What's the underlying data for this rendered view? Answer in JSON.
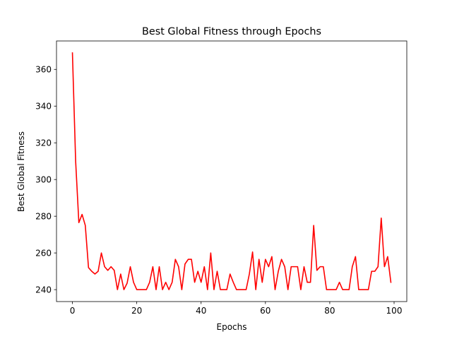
{
  "chart_data": {
    "type": "line",
    "title": "Best Global Fitness through Epochs",
    "xlabel": "Epochs",
    "ylabel": "Best Global Fitness",
    "xlim": [
      -4.95,
      103.95
    ],
    "ylim": [
      233.5,
      375.5
    ],
    "xticks": [
      0,
      20,
      40,
      60,
      80,
      100
    ],
    "yticks": [
      240,
      260,
      280,
      300,
      320,
      340,
      360
    ],
    "grid": false,
    "series": [
      {
        "color": "#ff0000",
        "x": [
          0,
          1,
          2,
          3,
          4,
          5,
          6,
          7,
          8,
          9,
          10,
          11,
          12,
          13,
          14,
          15,
          16,
          17,
          18,
          19,
          20,
          21,
          22,
          23,
          24,
          25,
          26,
          27,
          28,
          29,
          30,
          31,
          32,
          33,
          34,
          35,
          36,
          37,
          38,
          39,
          40,
          41,
          42,
          43,
          44,
          45,
          46,
          47,
          48,
          49,
          50,
          51,
          52,
          53,
          54,
          55,
          56,
          57,
          58,
          59,
          60,
          61,
          62,
          63,
          64,
          65,
          66,
          67,
          68,
          69,
          70,
          71,
          72,
          73,
          74,
          75,
          76,
          77,
          78,
          79,
          80,
          81,
          82,
          83,
          84,
          85,
          86,
          87,
          88,
          89,
          90,
          91,
          92,
          93,
          94,
          95,
          96,
          97,
          98,
          99
        ],
        "values": [
          369,
          310,
          276.5,
          281,
          275,
          252,
          250,
          248.5,
          250,
          260,
          252.5,
          250.5,
          252.5,
          250.5,
          240,
          248.5,
          240,
          243.5,
          252.5,
          244,
          240,
          240,
          240,
          240,
          244,
          252.5,
          240,
          252.5,
          240,
          244,
          240,
          244,
          256.5,
          252.5,
          240,
          254,
          256.5,
          256.5,
          244,
          250,
          244,
          252.5,
          240,
          260,
          240,
          250,
          240,
          240,
          240,
          248.5,
          244,
          240,
          240,
          240,
          240,
          248.5,
          260.5,
          240,
          256.5,
          244,
          256.5,
          252.5,
          258,
          240,
          250,
          256.5,
          252.5,
          240,
          252.5,
          252.5,
          252.5,
          240,
          252.5,
          244,
          244,
          275,
          250.5,
          252.5,
          252.5,
          240,
          240,
          240,
          240,
          244,
          240,
          240,
          240,
          252.5,
          258,
          240,
          240,
          240,
          240,
          250,
          250,
          252.5,
          279,
          252.5,
          258,
          244
        ]
      }
    ]
  }
}
